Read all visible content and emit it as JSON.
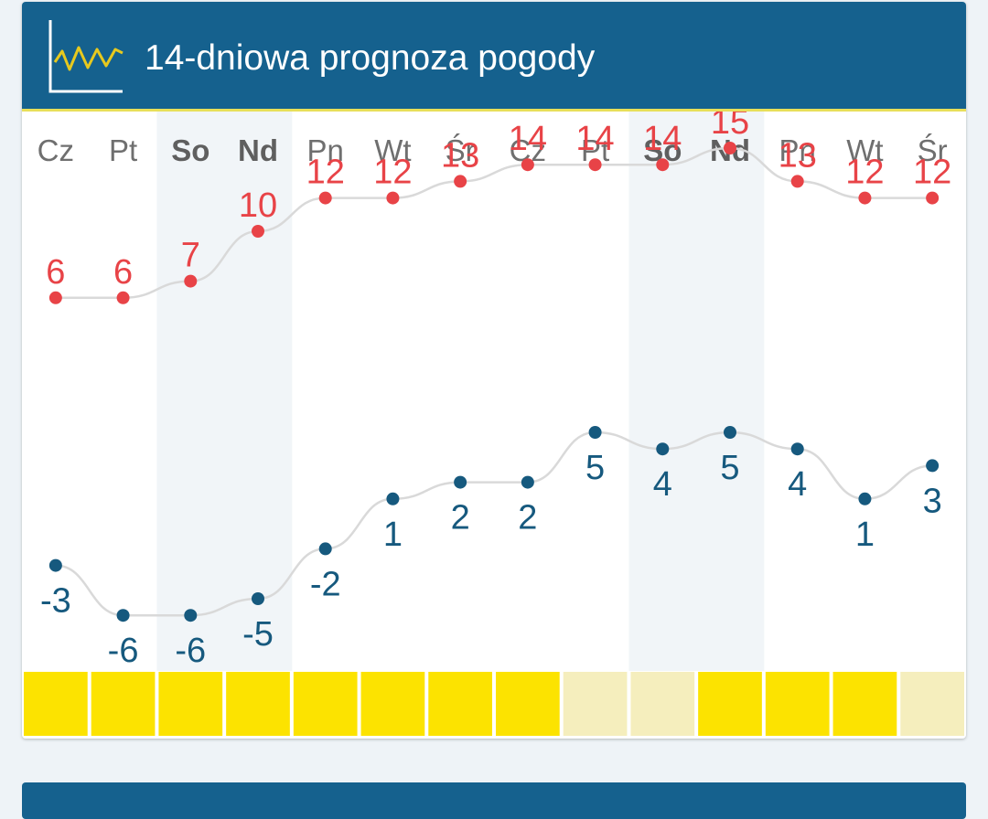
{
  "header": {
    "title": "14-dniowa prognoza pogody",
    "icon": "chart-line-icon"
  },
  "colors": {
    "header_bg": "#15618e",
    "header_border": "#e8df59",
    "weekend_bg": "#f1f5f8",
    "high_temp": "#e84347",
    "low_temp": "#16597e",
    "line": "#d9d9d9",
    "sun_full": "#fce300",
    "sun_partial": "#f5eebd",
    "day_text": "#6f6f6f",
    "weekend_text": "#5f5f5f",
    "icon_yellow": "#e7c91e"
  },
  "chart_data": {
    "type": "line",
    "categories": [
      "Cz",
      "Pt",
      "So",
      "Nd",
      "Pn",
      "Wt",
      "Śr",
      "Cz",
      "Pt",
      "So",
      "Nd",
      "Pn",
      "Wt",
      "Śr"
    ],
    "weekend": [
      false,
      false,
      true,
      true,
      false,
      false,
      false,
      false,
      false,
      true,
      true,
      false,
      false,
      false
    ],
    "series": [
      {
        "key": "high",
        "values": [
          6,
          6,
          7,
          10,
          12,
          12,
          13,
          14,
          14,
          14,
          15,
          13,
          12,
          12
        ]
      },
      {
        "key": "low",
        "values": [
          -3,
          -6,
          -6,
          -5,
          -2,
          1,
          2,
          2,
          5,
          4,
          5,
          4,
          1,
          3
        ]
      }
    ],
    "sun": [
      "full",
      "full",
      "full",
      "full",
      "full",
      "full",
      "full",
      "full",
      "partial",
      "partial",
      "full",
      "full",
      "full",
      "partial"
    ],
    "xlabel": "",
    "ylabel": "",
    "grid": false
  }
}
